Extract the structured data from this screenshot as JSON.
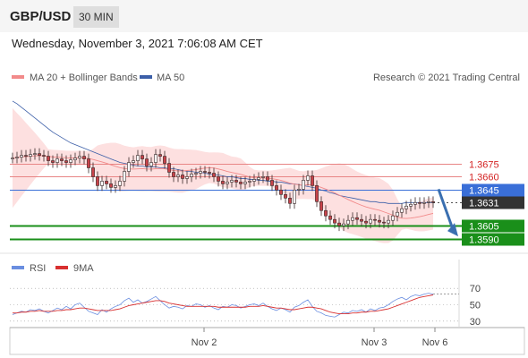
{
  "header": {
    "pair": "GBP/USD",
    "timeframe": "30 MIN"
  },
  "datetime": "Wednesday, November 3, 2021 7:06:08 AM CET",
  "legend": {
    "ma20": "MA 20 + Bollinger Bands",
    "ma50": "MA 50",
    "credit": "Research © 2021 Trading Central"
  },
  "rsi_legend": {
    "rsi": "RSI",
    "ma9": "9MA"
  },
  "colors": {
    "ma20": "#f28a8a",
    "ma50": "#3c5fa8",
    "band": "#fde0e0",
    "up": "#c8434a",
    "down": "#c8434a",
    "resistance": "#e88585",
    "support": "#1a8f1a",
    "current": "#3a6fd8",
    "last": "#333333",
    "rsi": "#6a8ee0",
    "rsi_ma": "#d83030",
    "arrow": "#3a6fb0"
  },
  "chart_data": {
    "type": "candlestick",
    "price_levels": [
      {
        "value": 1.3675,
        "label": "1.3675",
        "kind": "resistance"
      },
      {
        "value": 1.366,
        "label": "1.3660",
        "kind": "resistance"
      },
      {
        "value": 1.3645,
        "label": "1.3645",
        "kind": "current"
      },
      {
        "value": 1.3631,
        "label": "1.3631",
        "kind": "last"
      },
      {
        "value": 1.3605,
        "label": "1.3605",
        "kind": "support"
      },
      {
        "value": 1.359,
        "label": "1.3590",
        "kind": "support"
      }
    ],
    "ylim": [
      1.3575,
      1.376
    ],
    "x_ticks": [
      "Nov 2",
      "Nov 3",
      "Nov 6"
    ],
    "rsi_ticks": [
      "70",
      "50",
      "30"
    ],
    "rsi_ylim": [
      20,
      80
    ],
    "candles_close": [
      1.3681,
      1.3682,
      1.3684,
      1.3683,
      1.3685,
      1.3686,
      1.3684,
      1.3683,
      1.3678,
      1.3676,
      1.368,
      1.3678,
      1.3676,
      1.3679,
      1.3681,
      1.3683,
      1.368,
      1.367,
      1.366,
      1.365,
      1.3655,
      1.3652,
      1.3648,
      1.365,
      1.3655,
      1.3666,
      1.3676,
      1.3678,
      1.3684,
      1.368,
      1.3672,
      1.3676,
      1.3685,
      1.3683,
      1.3675,
      1.3665,
      1.366,
      1.3662,
      1.3658,
      1.366,
      1.3663,
      1.3664,
      1.3666,
      1.3665,
      1.3664,
      1.366,
      1.3655,
      1.3652,
      1.3654,
      1.3656,
      1.3654,
      1.3652,
      1.3654,
      1.3655,
      1.3657,
      1.3659,
      1.366,
      1.3656,
      1.365,
      1.3645,
      1.364,
      1.3636,
      1.363,
      1.3645,
      1.3646,
      1.3656,
      1.3661,
      1.365,
      1.3632,
      1.3622,
      1.3616,
      1.3612,
      1.3608,
      1.3605,
      1.3607,
      1.3611,
      1.3614,
      1.3612,
      1.361,
      1.3608,
      1.3612,
      1.3611,
      1.3609,
      1.3608,
      1.3611,
      1.3616,
      1.362,
      1.3624,
      1.3627,
      1.3629,
      1.3631,
      1.363,
      1.3631,
      1.3632,
      1.3631
    ],
    "ma50": [
      1.3745,
      1.3742,
      1.3738,
      1.3734,
      1.373,
      1.3726,
      1.3722,
      1.3718,
      1.3714,
      1.371,
      1.3707,
      1.3704,
      1.3701,
      1.3698,
      1.3696,
      1.3694,
      1.3692,
      1.369,
      1.3688,
      1.3686,
      1.3684,
      1.3682,
      1.368,
      1.3678,
      1.3676,
      1.3675,
      1.3674,
      1.3673,
      1.3672,
      1.3672,
      1.3671,
      1.3671,
      1.3671,
      1.367,
      1.367,
      1.3669,
      1.3669,
      1.3668,
      1.3667,
      1.3666,
      1.3666,
      1.3665,
      1.3665,
      1.3664,
      1.3663,
      1.3662,
      1.3662,
      1.3661,
      1.366,
      1.366,
      1.3659,
      1.3658,
      1.3658,
      1.3657,
      1.3657,
      1.3656,
      1.3656,
      1.3655,
      1.3655,
      1.3654,
      1.3654,
      1.3653,
      1.3652,
      1.3652,
      1.3651,
      1.365,
      1.3649,
      1.3648,
      1.3647,
      1.3645,
      1.3644,
      1.3642,
      1.3641,
      1.3639,
      1.3638,
      1.3637,
      1.3636,
      1.3635,
      1.3634,
      1.3633,
      1.3632,
      1.3632,
      1.3631,
      1.3631,
      1.363,
      1.363,
      1.363,
      1.363,
      1.3631,
      1.3631,
      1.3631,
      1.3631,
      1.3631,
      1.3631,
      1.3631
    ],
    "rsi": [
      38,
      40,
      42,
      41,
      44,
      43,
      45,
      42,
      40,
      43,
      46,
      44,
      48,
      45,
      50,
      52,
      47,
      42,
      40,
      38,
      44,
      41,
      45,
      48,
      50,
      55,
      58,
      53,
      56,
      52,
      54,
      57,
      60,
      55,
      50,
      46,
      48,
      47,
      45,
      49,
      48,
      51,
      50,
      47,
      49,
      46,
      44,
      48,
      47,
      50,
      49,
      46,
      48,
      50,
      51,
      49,
      52,
      48,
      45,
      43,
      46,
      44,
      41,
      47,
      49,
      53,
      56,
      48,
      42,
      40,
      37,
      36,
      35,
      38,
      41,
      40,
      43,
      42,
      44,
      41,
      45,
      43,
      46,
      47,
      50,
      54,
      57,
      59,
      56,
      60,
      62,
      61,
      63,
      64,
      63
    ],
    "rsi_ma": [
      40,
      40,
      41,
      41,
      42,
      42,
      43,
      42,
      42,
      42,
      43,
      43,
      44,
      44,
      45,
      46,
      46,
      45,
      44,
      43,
      43,
      43,
      43,
      44,
      45,
      47,
      49,
      50,
      51,
      52,
      53,
      54,
      55,
      55,
      54,
      52,
      51,
      50,
      49,
      48,
      48,
      48,
      48,
      48,
      48,
      48,
      47,
      47,
      47,
      47,
      47,
      47,
      47,
      48,
      48,
      48,
      49,
      48,
      47,
      46,
      46,
      45,
      44,
      44,
      45,
      46,
      47,
      47,
      46,
      45,
      43,
      41,
      40,
      39,
      39,
      39,
      40,
      40,
      41,
      41,
      42,
      42,
      43,
      44,
      45,
      47,
      49,
      51,
      53,
      55,
      57,
      59,
      60,
      61,
      62
    ],
    "forecast_arrow": {
      "from": 1.3646,
      "to": 1.3595
    }
  }
}
